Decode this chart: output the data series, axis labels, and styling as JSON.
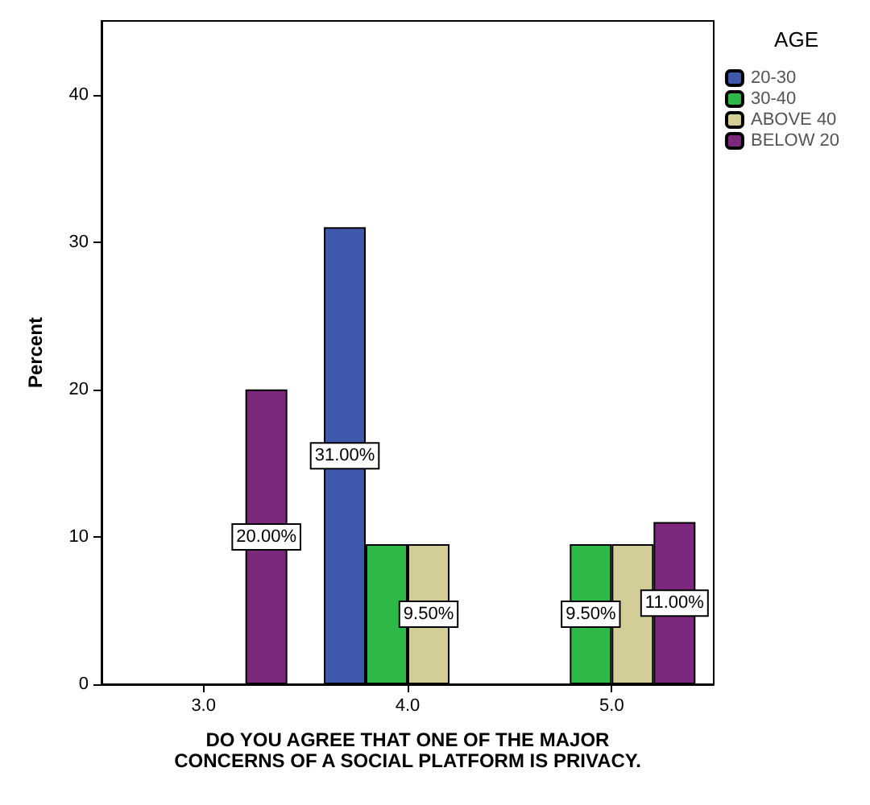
{
  "chart_data": {
    "type": "bar",
    "xlabel": "DO YOU AGREE THAT ONE OF THE MAJOR\nCONCERNS OF A SOCIAL PLATFORM IS PRIVACY.",
    "ylabel": "Percent",
    "legend_title": "AGE",
    "categories": [
      "3.0",
      "4.0",
      "5.0"
    ],
    "series": [
      {
        "name": "20-30",
        "color": "#3e58ac",
        "values": [
          null,
          31,
          null
        ],
        "value_labels": [
          null,
          "31.00%",
          null
        ]
      },
      {
        "name": "30-40",
        "color": "#2eb848",
        "values": [
          null,
          9.5,
          9.5
        ],
        "value_labels": [
          null,
          null,
          "9.50%"
        ]
      },
      {
        "name": "ABOVE 40",
        "color": "#d3ce97",
        "values": [
          null,
          9.5,
          9.5
        ],
        "value_labels": [
          null,
          "9.50%",
          null
        ]
      },
      {
        "name": "BELOW 20",
        "color": "#7c287d",
        "values": [
          20,
          null,
          11
        ],
        "value_labels": [
          "20.00%",
          null,
          "11.00%"
        ]
      }
    ],
    "ylim": [
      0,
      45
    ],
    "yticks": [
      0,
      10,
      20,
      30,
      40
    ],
    "grid": false,
    "legend": "right"
  }
}
